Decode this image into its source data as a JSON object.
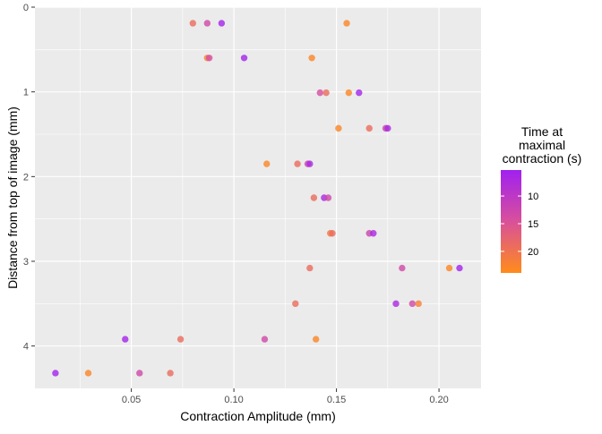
{
  "chart_data": {
    "type": "scatter",
    "xlabel": "Contraction Amplitude (mm)",
    "ylabel": "Distance from top of image (mm)",
    "xlim": [
      0.003,
      0.2205
    ],
    "ylim": [
      0,
      4.5
    ],
    "y_reversed": true,
    "grid": true,
    "x_ticks": [
      0.05,
      0.1,
      0.15,
      0.2
    ],
    "x_tick_labels": [
      "0.05",
      "0.10",
      "0.15",
      "0.20"
    ],
    "y_ticks": [
      0,
      1,
      2,
      3,
      4
    ],
    "y_tick_labels": [
      "0",
      "1",
      "2",
      "3",
      "4"
    ],
    "legend": {
      "title": "Time at\nmaximal\ncontraction (s)",
      "position": "right",
      "ticks": [
        10,
        15,
        20
      ],
      "tick_labels": [
        "10",
        "15",
        "20"
      ],
      "range": [
        5.3,
        23.9
      ],
      "low_color": "#A020F0",
      "high_color": "#FF8C1A"
    },
    "points": [
      {
        "x": 0.08,
        "y": 0.19,
        "t": 19
      },
      {
        "x": 0.087,
        "y": 0.19,
        "t": 13
      },
      {
        "x": 0.094,
        "y": 0.19,
        "t": 6
      },
      {
        "x": 0.155,
        "y": 0.19,
        "t": 23
      },
      {
        "x": 0.087,
        "y": 0.6,
        "t": 22
      },
      {
        "x": 0.088,
        "y": 0.6,
        "t": 14
      },
      {
        "x": 0.105,
        "y": 0.6,
        "t": 6
      },
      {
        "x": 0.138,
        "y": 0.6,
        "t": 23
      },
      {
        "x": 0.142,
        "y": 1.01,
        "t": 14
      },
      {
        "x": 0.145,
        "y": 1.01,
        "t": 19
      },
      {
        "x": 0.156,
        "y": 1.01,
        "t": 23
      },
      {
        "x": 0.161,
        "y": 1.01,
        "t": 6
      },
      {
        "x": 0.151,
        "y": 1.43,
        "t": 23
      },
      {
        "x": 0.166,
        "y": 1.43,
        "t": 19
      },
      {
        "x": 0.174,
        "y": 1.43,
        "t": 12
      },
      {
        "x": 0.175,
        "y": 1.43,
        "t": 7
      },
      {
        "x": 0.116,
        "y": 1.85,
        "t": 23
      },
      {
        "x": 0.131,
        "y": 1.85,
        "t": 19
      },
      {
        "x": 0.136,
        "y": 1.85,
        "t": 12
      },
      {
        "x": 0.137,
        "y": 1.85,
        "t": 7
      },
      {
        "x": 0.139,
        "y": 2.25,
        "t": 19
      },
      {
        "x": 0.144,
        "y": 2.25,
        "t": 7
      },
      {
        "x": 0.146,
        "y": 2.25,
        "t": 13
      },
      {
        "x": 0.147,
        "y": 2.67,
        "t": 21
      },
      {
        "x": 0.148,
        "y": 2.67,
        "t": 19
      },
      {
        "x": 0.166,
        "y": 2.67,
        "t": 12
      },
      {
        "x": 0.168,
        "y": 2.67,
        "t": 7
      },
      {
        "x": 0.137,
        "y": 3.08,
        "t": 19
      },
      {
        "x": 0.182,
        "y": 3.08,
        "t": 13
      },
      {
        "x": 0.205,
        "y": 3.08,
        "t": 23
      },
      {
        "x": 0.21,
        "y": 3.08,
        "t": 6
      },
      {
        "x": 0.13,
        "y": 3.5,
        "t": 19
      },
      {
        "x": 0.179,
        "y": 3.5,
        "t": 7
      },
      {
        "x": 0.187,
        "y": 3.5,
        "t": 13
      },
      {
        "x": 0.19,
        "y": 3.5,
        "t": 22
      },
      {
        "x": 0.047,
        "y": 3.92,
        "t": 6
      },
      {
        "x": 0.074,
        "y": 3.92,
        "t": 19
      },
      {
        "x": 0.115,
        "y": 3.92,
        "t": 13
      },
      {
        "x": 0.14,
        "y": 3.92,
        "t": 23
      },
      {
        "x": 0.013,
        "y": 4.32,
        "t": 6
      },
      {
        "x": 0.029,
        "y": 4.32,
        "t": 23
      },
      {
        "x": 0.054,
        "y": 4.32,
        "t": 13
      },
      {
        "x": 0.069,
        "y": 4.32,
        "t": 19
      }
    ]
  }
}
